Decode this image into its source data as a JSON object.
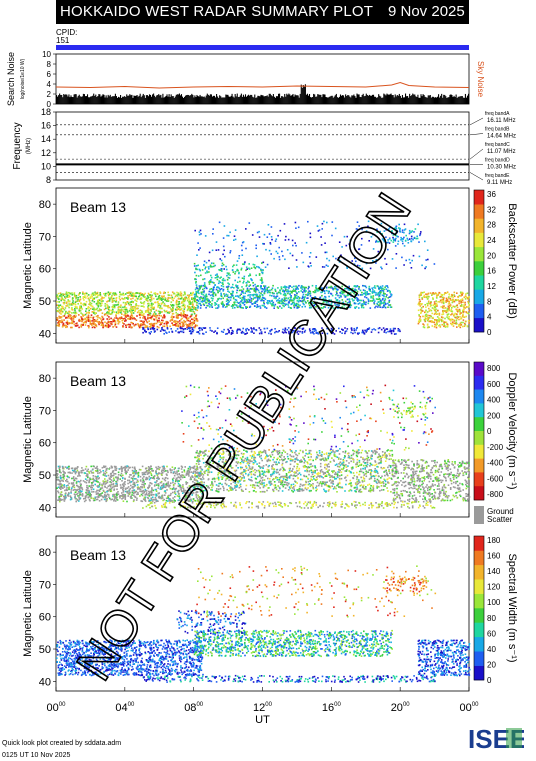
{
  "header": {
    "title": "HOKKAIDO WEST RADAR SUMMARY PLOT",
    "date": "9 Nov 2025",
    "cpid_label": "CPID:",
    "cpid_value": "151",
    "cpid_color": "#2b2bf0"
  },
  "watermark": "NOT FOR PUBLICATION",
  "footer": {
    "credit": "Quick look plot created by sddata.adm",
    "time": "0125 UT 10 Nov 2025",
    "logo_text": "ISEE",
    "logo_colors": [
      "#1a3d8f",
      "#2f9e44"
    ]
  },
  "chart_data": [
    {
      "type": "line",
      "panel": "search-noise",
      "ylabel": "Search Noise",
      "ylabel_sub": "log(noise/1e10 W)",
      "right_label": "Sky Noise",
      "yticks": [
        0,
        2,
        4,
        6,
        8,
        10
      ],
      "ylim": [
        0,
        10
      ],
      "colors": {
        "search_noise": "#000000",
        "sky_noise": "#d9531e"
      },
      "series": [
        {
          "name": "Sky Noise",
          "x": [
            0,
            2,
            4,
            6,
            8,
            10,
            12,
            14,
            16,
            18,
            19.5,
            20,
            20.5,
            22,
            24
          ],
          "values": [
            3.4,
            3.3,
            3.5,
            3.2,
            3.4,
            3.5,
            3.4,
            3.6,
            3.5,
            3.4,
            3.8,
            4.3,
            3.7,
            3.4,
            3.3
          ]
        }
      ],
      "bars_value": 1.2
    },
    {
      "type": "line",
      "panel": "frequency",
      "ylabel": "Frequency",
      "ylabel_sub": "(MHz)",
      "yticks": [
        8,
        10,
        12,
        14,
        16,
        18
      ],
      "ylim": [
        8,
        18
      ],
      "bands": [
        {
          "label": "freq bandA",
          "value": "16.11 MHz",
          "mhz": 16.11
        },
        {
          "label": "freq bandB",
          "value": "14.64 MHz",
          "mhz": 14.64
        },
        {
          "label": "freq bandC",
          "value": "11.07 MHz",
          "mhz": 11.07
        },
        {
          "label": "freq bandD",
          "value": "10.30 MHz",
          "mhz": 10.3
        },
        {
          "label": "freq bandE",
          "value": "9.11 MHz",
          "mhz": 9.11
        }
      ]
    },
    {
      "type": "heatmap",
      "panel": "power",
      "beam": "Beam 13",
      "ylabel": "Magnetic Latitude",
      "yticks": [
        40,
        50,
        60,
        70,
        80
      ],
      "ylim": [
        37,
        85
      ],
      "colorbar_title": "Backscatter Power (dB)",
      "colorbar_ticks": [
        "0",
        "4",
        "8",
        "12",
        "16",
        "20",
        "24",
        "28",
        "32",
        "36"
      ]
    },
    {
      "type": "heatmap",
      "panel": "velocity",
      "beam": "Beam 13",
      "ylabel": "Magnetic Latitude",
      "yticks": [
        40,
        50,
        60,
        70,
        80
      ],
      "ylim": [
        37,
        85
      ],
      "colorbar_title": "Doppler Velocity (m s⁻¹)",
      "colorbar_ticks": [
        "800",
        "600",
        "400",
        "200",
        "0",
        "-200",
        "-400",
        "-600",
        "-800"
      ],
      "ground_scatter_label": "Ground Scatter"
    },
    {
      "type": "heatmap",
      "panel": "width",
      "beam": "Beam 13",
      "ylabel": "Magnetic Latitude",
      "yticks": [
        40,
        50,
        60,
        70,
        80
      ],
      "ylim": [
        37,
        85
      ],
      "colorbar_title": "Spectral Width (m s⁻¹)",
      "colorbar_ticks": [
        "0",
        "20",
        "40",
        "60",
        "80",
        "100",
        "120",
        "140",
        "160",
        "180"
      ]
    }
  ],
  "xaxis": {
    "label": "UT",
    "ticks": [
      {
        "base": "00",
        "sup": "00",
        "hour": 0
      },
      {
        "base": "04",
        "sup": "00",
        "hour": 4
      },
      {
        "base": "08",
        "sup": "00",
        "hour": 8
      },
      {
        "base": "12",
        "sup": "00",
        "hour": 12
      },
      {
        "base": "16",
        "sup": "00",
        "hour": 16
      },
      {
        "base": "20",
        "sup": "00",
        "hour": 20
      },
      {
        "base": "00",
        "sup": "00",
        "hour": 24
      }
    ]
  }
}
